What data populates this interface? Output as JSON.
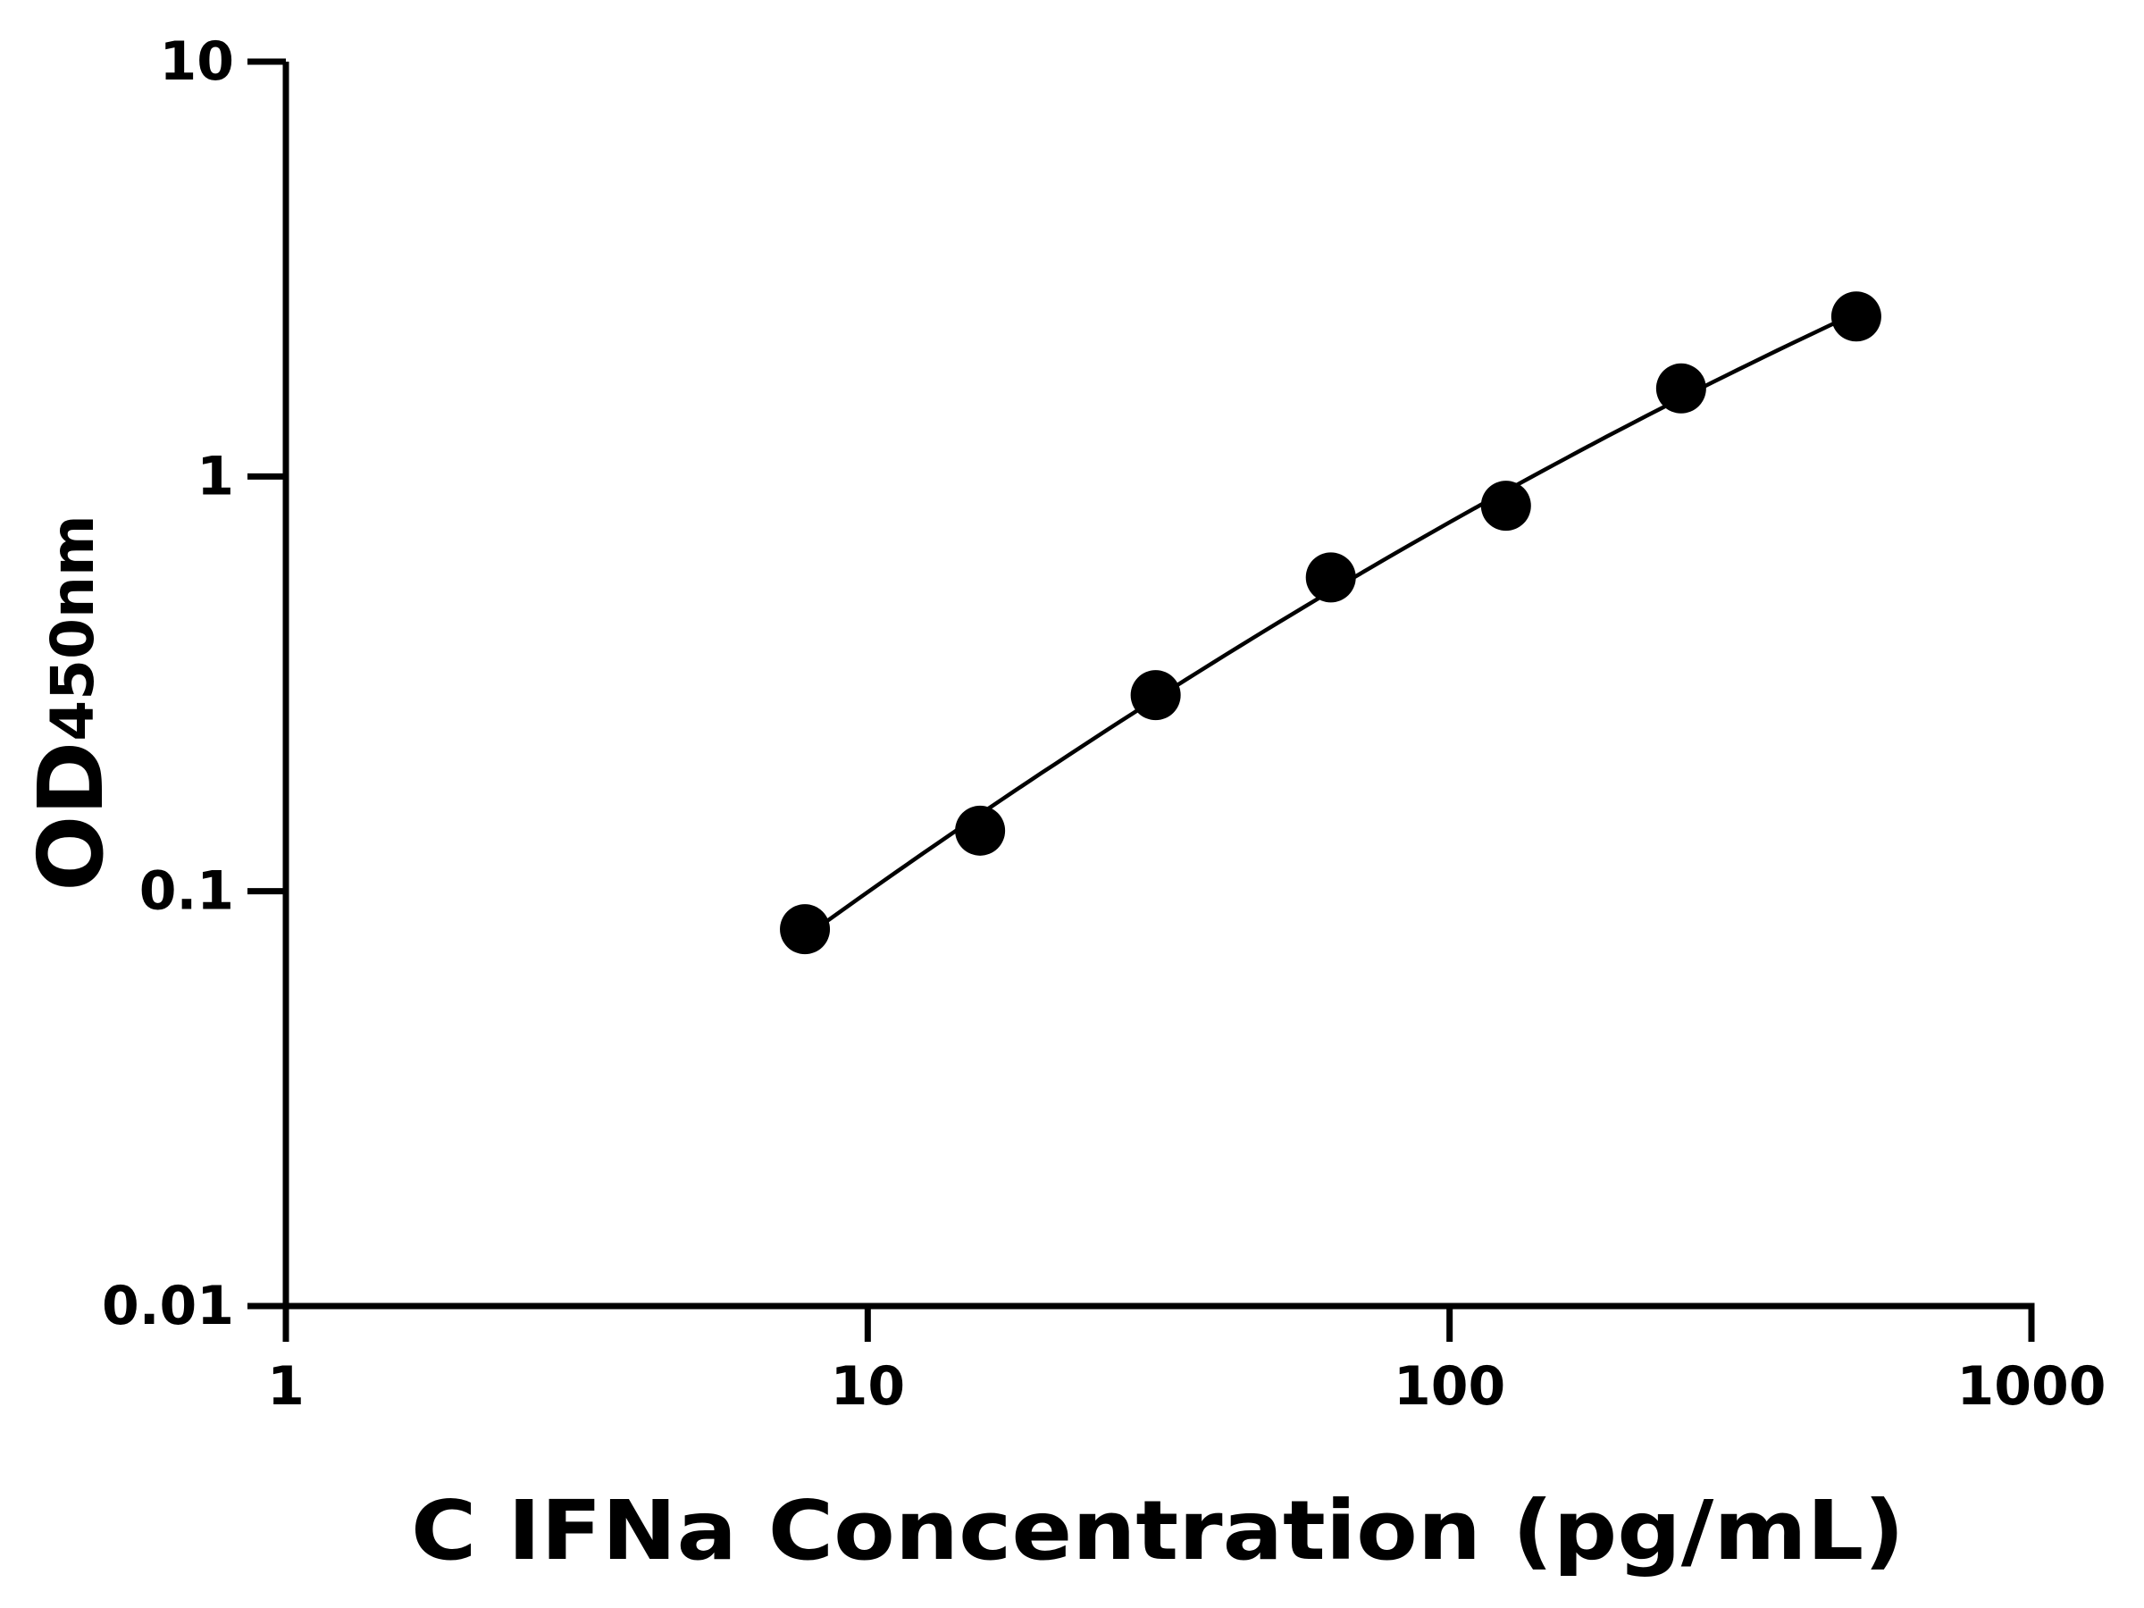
{
  "chart_data": {
    "type": "scatter",
    "title": "",
    "xlabel": "C IFNa Concentration (pg/mL)",
    "ylabel_main": "OD",
    "ylabel_sub": "450nm",
    "x_scale": "log",
    "y_scale": "log",
    "xlim": [
      1,
      1000
    ],
    "ylim": [
      0.01,
      10
    ],
    "x_ticks": [
      1,
      10,
      100,
      1000
    ],
    "x_tick_labels": [
      "1",
      "10",
      "100",
      "1000"
    ],
    "y_ticks": [
      0.01,
      0.1,
      1,
      10
    ],
    "y_tick_labels": [
      "0.01",
      "0.1",
      "1",
      "10"
    ],
    "grid": false,
    "legend": "none",
    "fit_curve": true,
    "series": [
      {
        "x": [
          7.8,
          15.6,
          31.25,
          62.5,
          125,
          250,
          500
        ],
        "y": [
          0.081,
          0.14,
          0.297,
          0.571,
          0.85,
          1.63,
          2.43
        ]
      }
    ],
    "colors": {
      "marker": "#000000",
      "curve": "#000000",
      "axis": "#000000"
    }
  }
}
